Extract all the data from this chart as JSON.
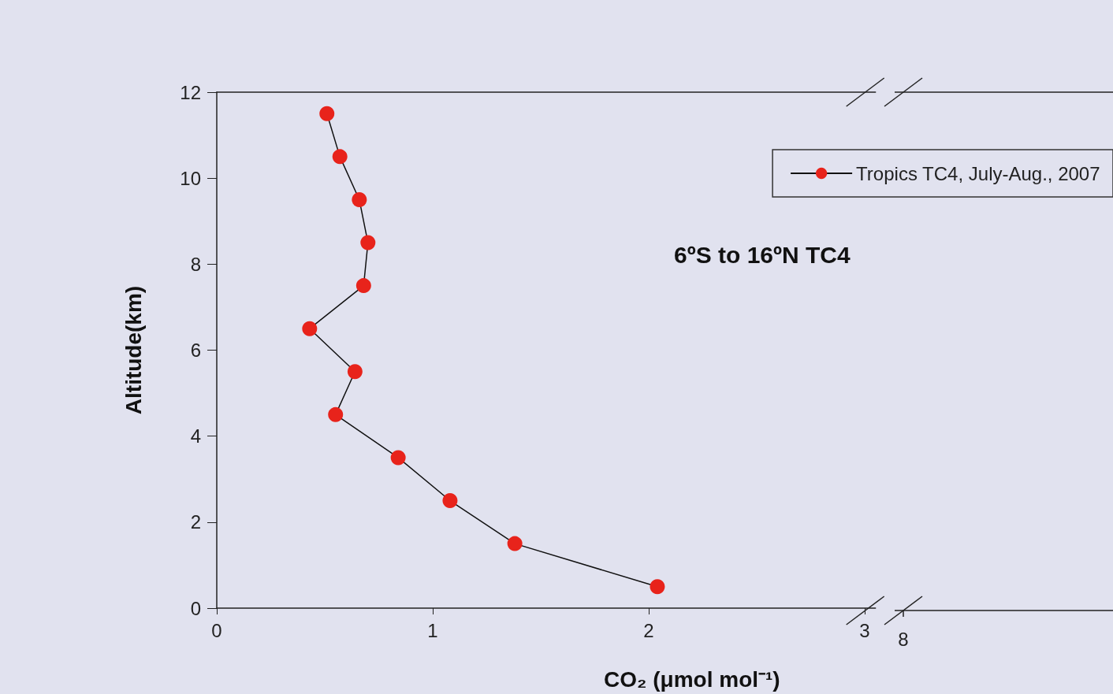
{
  "chart_data": [
    {
      "type": "line",
      "xlabel": "CO₂ (μmol mol⁻¹)",
      "ylabel": "Altitude(km)",
      "series": [
        {
          "name": "Tropics TC4, July-Aug., 2007",
          "color": "#e8231b",
          "x": [
            0.51,
            0.57,
            0.66,
            0.7,
            0.68,
            0.43,
            0.64,
            0.55,
            0.84,
            1.08,
            1.38,
            2.04
          ],
          "values": [
            11.5,
            10.5,
            9.5,
            8.5,
            7.5,
            6.5,
            5.5,
            4.5,
            3.5,
            2.5,
            1.5,
            0.5
          ]
        }
      ],
      "xlim": [
        0,
        3.05
      ],
      "xticks": [
        0,
        1,
        2,
        3
      ],
      "ylim": [
        0,
        12
      ],
      "yticks": [
        0,
        2,
        4,
        6,
        8,
        10,
        12
      ],
      "annotations": [
        "6ºS to 16ºN TC4"
      ],
      "legend": "top right",
      "marker": "circle",
      "line_style": "solid"
    },
    {
      "type": "other",
      "annotations": [
        "8"
      ]
    }
  ]
}
